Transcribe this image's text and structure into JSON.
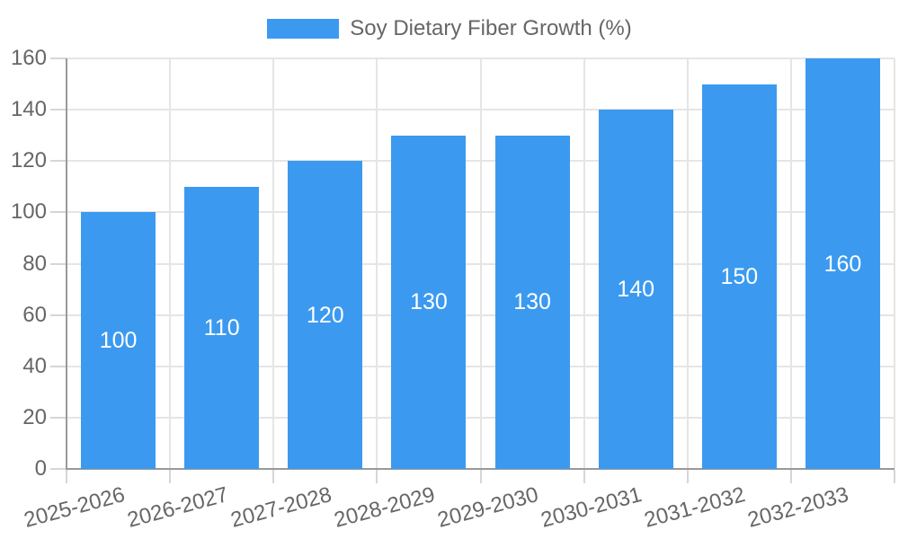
{
  "chart_data": {
    "type": "bar",
    "title": "Soy Dietary Fiber Growth (%)",
    "series_name": "Soy Dietary Fiber Growth (%)",
    "categories": [
      "2025-2026",
      "2026-2027",
      "2027-2028",
      "2028-2029",
      "2029-2030",
      "2030-2031",
      "2031-2032",
      "2032-2033"
    ],
    "values": [
      100,
      110,
      120,
      130,
      130,
      140,
      150,
      160
    ],
    "bar_value_labels": [
      "100",
      "110",
      "120",
      "130",
      "130",
      "140",
      "150",
      "160"
    ],
    "xlabel": "",
    "ylabel": "",
    "ylim": [
      0,
      160
    ],
    "yticks": [
      0,
      20,
      40,
      60,
      80,
      100,
      120,
      140,
      160
    ],
    "grid": true,
    "legend_position": "top",
    "colors": {
      "bar": "#3b9af0",
      "bar_label_text": "#ffffff",
      "axis_text": "#666666",
      "gridline": "#e5e5e5",
      "tick_mark": "#d6d6d6",
      "axis_line": "#999999",
      "background": "#ffffff"
    }
  }
}
